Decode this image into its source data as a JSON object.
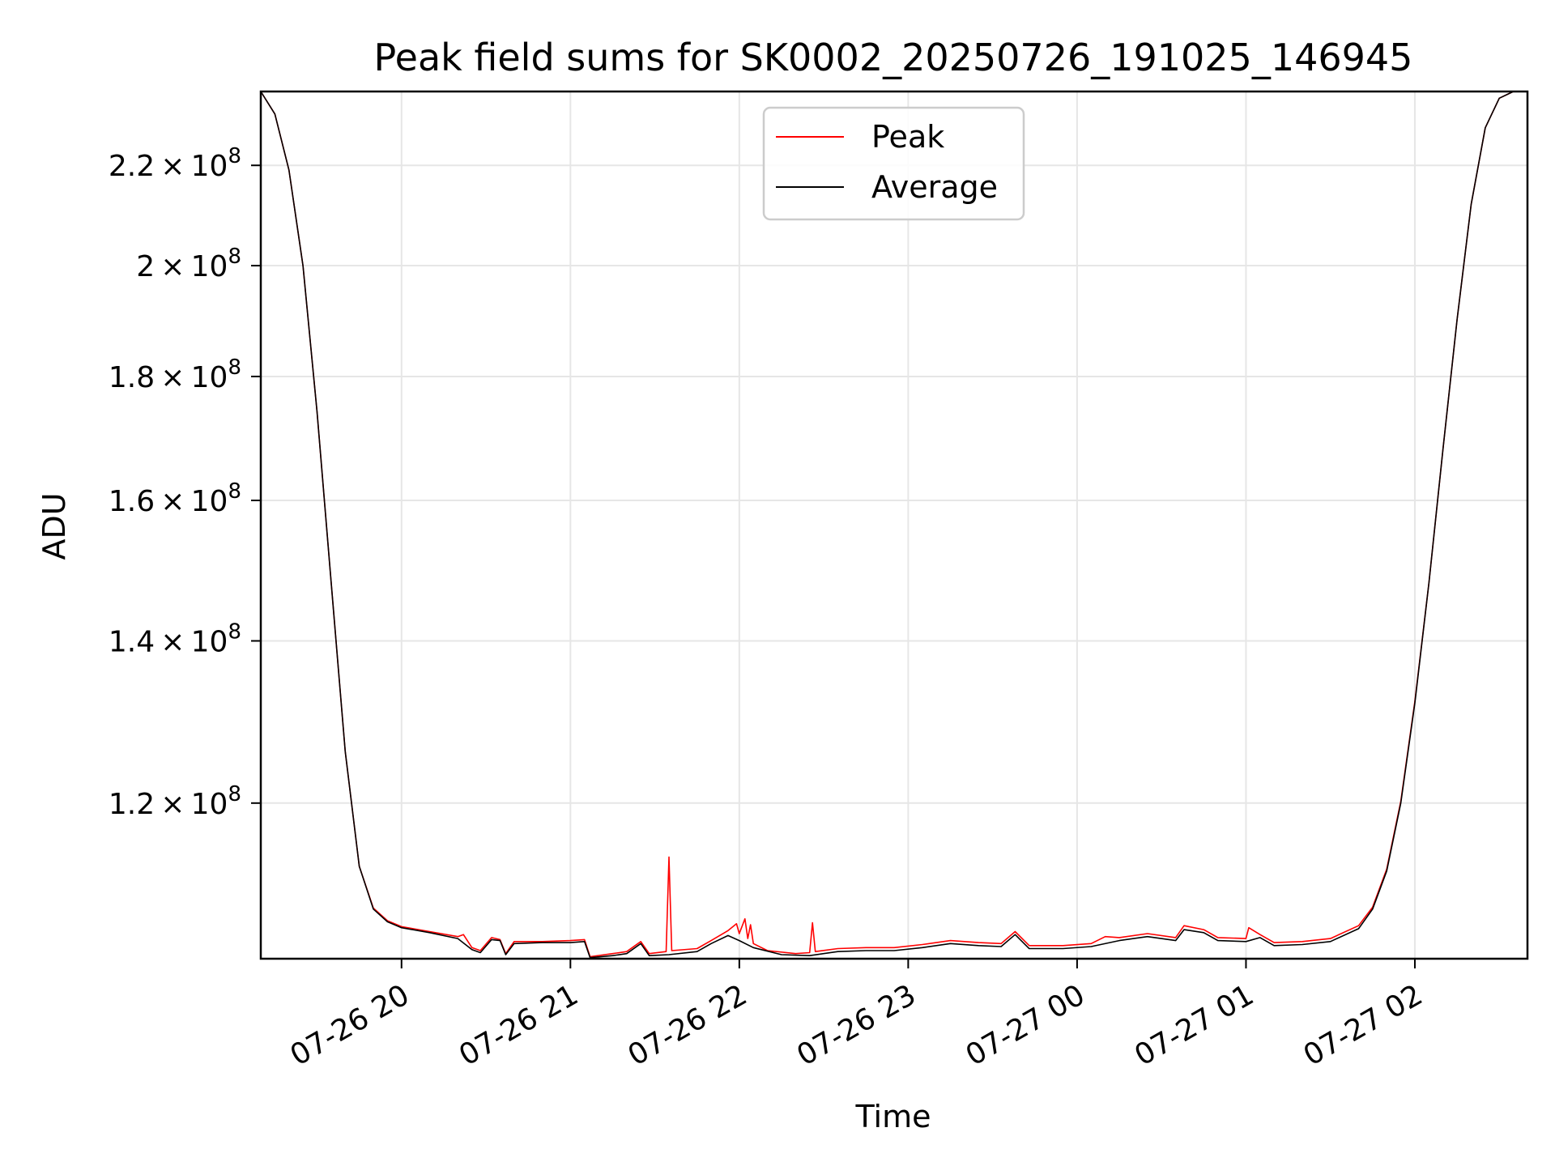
{
  "chart_data": {
    "type": "line",
    "title": "Peak field sums for SK0002_20250726_191025_146945",
    "xlabel": "Time",
    "ylabel": "ADU",
    "y_scale": "log",
    "grid": true,
    "legend_position": "upper-center",
    "x_range": [
      "2025-07-26T19:10",
      "2025-07-27T02:40"
    ],
    "y_range": [
      103500000,
      236000000
    ],
    "x_ticks": [
      {
        "value": "2025-07-26T20:00",
        "label": "07-26 20"
      },
      {
        "value": "2025-07-26T21:00",
        "label": "07-26 21"
      },
      {
        "value": "2025-07-26T22:00",
        "label": "07-26 22"
      },
      {
        "value": "2025-07-26T23:00",
        "label": "07-26 23"
      },
      {
        "value": "2025-07-27T00:00",
        "label": "07-27 00"
      },
      {
        "value": "2025-07-27T01:00",
        "label": "07-27 01"
      },
      {
        "value": "2025-07-27T02:00",
        "label": "07-27 02"
      }
    ],
    "y_ticks": [
      {
        "value": 120000000,
        "mantissa": "1.2",
        "exponent": "8"
      },
      {
        "value": 140000000,
        "mantissa": "1.4",
        "exponent": "8"
      },
      {
        "value": 160000000,
        "mantissa": "1.6",
        "exponent": "8"
      },
      {
        "value": 180000000,
        "mantissa": "1.8",
        "exponent": "8"
      },
      {
        "value": 200000000,
        "mantissa": "2",
        "exponent": "8"
      },
      {
        "value": 220000000,
        "mantissa": "2.2",
        "exponent": "8"
      }
    ],
    "series": [
      {
        "name": "Average",
        "color": "#000000",
        "points": [
          [
            "2025-07-26T19:10",
            236000000
          ],
          [
            "2025-07-26T19:15",
            231000000
          ],
          [
            "2025-07-26T19:20",
            219000000
          ],
          [
            "2025-07-26T19:25",
            200000000
          ],
          [
            "2025-07-26T19:30",
            174000000
          ],
          [
            "2025-07-26T19:35",
            148000000
          ],
          [
            "2025-07-26T19:40",
            126000000
          ],
          [
            "2025-07-26T19:45",
            113000000
          ],
          [
            "2025-07-26T19:50",
            108500000
          ],
          [
            "2025-07-26T19:55",
            107200000
          ],
          [
            "2025-07-26T20:00",
            106600000
          ],
          [
            "2025-07-26T20:10",
            106100000
          ],
          [
            "2025-07-26T20:20",
            105500000
          ],
          [
            "2025-07-26T20:25",
            104400000
          ],
          [
            "2025-07-26T20:28",
            104100000
          ],
          [
            "2025-07-26T20:32",
            105400000
          ],
          [
            "2025-07-26T20:35",
            105300000
          ],
          [
            "2025-07-26T20:37",
            103900000
          ],
          [
            "2025-07-26T20:40",
            105000000
          ],
          [
            "2025-07-26T20:50",
            105100000
          ],
          [
            "2025-07-26T21:00",
            105100000
          ],
          [
            "2025-07-26T21:05",
            105200000
          ],
          [
            "2025-07-26T21:07",
            103600000
          ],
          [
            "2025-07-26T21:15",
            103800000
          ],
          [
            "2025-07-26T21:20",
            104000000
          ],
          [
            "2025-07-26T21:25",
            105000000
          ],
          [
            "2025-07-26T21:28",
            103800000
          ],
          [
            "2025-07-26T21:35",
            103900000
          ],
          [
            "2025-07-26T21:45",
            104200000
          ],
          [
            "2025-07-26T21:50",
            105000000
          ],
          [
            "2025-07-26T21:56",
            105800000
          ],
          [
            "2025-07-26T22:00",
            105300000
          ],
          [
            "2025-07-26T22:05",
            104600000
          ],
          [
            "2025-07-26T22:15",
            103900000
          ],
          [
            "2025-07-26T22:25",
            103800000
          ],
          [
            "2025-07-26T22:35",
            104200000
          ],
          [
            "2025-07-26T22:45",
            104300000
          ],
          [
            "2025-07-26T22:55",
            104300000
          ],
          [
            "2025-07-26T23:05",
            104600000
          ],
          [
            "2025-07-26T23:15",
            105000000
          ],
          [
            "2025-07-26T23:25",
            104800000
          ],
          [
            "2025-07-26T23:33",
            104700000
          ],
          [
            "2025-07-26T23:38",
            105900000
          ],
          [
            "2025-07-26T23:43",
            104500000
          ],
          [
            "2025-07-26T23:55",
            104500000
          ],
          [
            "2025-07-27T00:05",
            104700000
          ],
          [
            "2025-07-27T00:15",
            105300000
          ],
          [
            "2025-07-27T00:25",
            105700000
          ],
          [
            "2025-07-27T00:35",
            105300000
          ],
          [
            "2025-07-27T00:38",
            106400000
          ],
          [
            "2025-07-27T00:45",
            106100000
          ],
          [
            "2025-07-27T00:50",
            105300000
          ],
          [
            "2025-07-27T01:00",
            105200000
          ],
          [
            "2025-07-27T01:05",
            105600000
          ],
          [
            "2025-07-27T01:10",
            104800000
          ],
          [
            "2025-07-27T01:20",
            104900000
          ],
          [
            "2025-07-27T01:30",
            105200000
          ],
          [
            "2025-07-27T01:40",
            106500000
          ],
          [
            "2025-07-27T01:45",
            108500000
          ],
          [
            "2025-07-27T01:50",
            112500000
          ],
          [
            "2025-07-27T01:55",
            120000000
          ],
          [
            "2025-07-27T02:00",
            132000000
          ],
          [
            "2025-07-27T02:05",
            148000000
          ],
          [
            "2025-07-27T02:10",
            168000000
          ],
          [
            "2025-07-27T02:15",
            190000000
          ],
          [
            "2025-07-27T02:20",
            212000000
          ],
          [
            "2025-07-27T02:25",
            228000000
          ],
          [
            "2025-07-27T02:30",
            234500000
          ],
          [
            "2025-07-27T02:35",
            236000000
          ],
          [
            "2025-07-27T02:40",
            236000000
          ]
        ]
      },
      {
        "name": "Peak",
        "color": "#ff0000",
        "points": [
          [
            "2025-07-26T19:10",
            236000000
          ],
          [
            "2025-07-26T19:15",
            231000000
          ],
          [
            "2025-07-26T19:20",
            219000000
          ],
          [
            "2025-07-26T19:25",
            200000000
          ],
          [
            "2025-07-26T19:30",
            174000000
          ],
          [
            "2025-07-26T19:35",
            148000000
          ],
          [
            "2025-07-26T19:40",
            126000000
          ],
          [
            "2025-07-26T19:45",
            113000000
          ],
          [
            "2025-07-26T19:50",
            108600000
          ],
          [
            "2025-07-26T19:55",
            107300000
          ],
          [
            "2025-07-26T20:00",
            106700000
          ],
          [
            "2025-07-26T20:10",
            106200000
          ],
          [
            "2025-07-26T20:20",
            105700000
          ],
          [
            "2025-07-26T20:22",
            105900000
          ],
          [
            "2025-07-26T20:25",
            104600000
          ],
          [
            "2025-07-26T20:28",
            104300000
          ],
          [
            "2025-07-26T20:32",
            105600000
          ],
          [
            "2025-07-26T20:35",
            105400000
          ],
          [
            "2025-07-26T20:37",
            104000000
          ],
          [
            "2025-07-26T20:40",
            105200000
          ],
          [
            "2025-07-26T20:50",
            105200000
          ],
          [
            "2025-07-26T21:00",
            105300000
          ],
          [
            "2025-07-26T21:05",
            105400000
          ],
          [
            "2025-07-26T21:07",
            103700000
          ],
          [
            "2025-07-26T21:15",
            104000000
          ],
          [
            "2025-07-26T21:20",
            104200000
          ],
          [
            "2025-07-26T21:25",
            105200000
          ],
          [
            "2025-07-26T21:28",
            104000000
          ],
          [
            "2025-07-26T21:34",
            104200000
          ],
          [
            "2025-07-26T21:35",
            114000000
          ],
          [
            "2025-07-26T21:36",
            104300000
          ],
          [
            "2025-07-26T21:45",
            104500000
          ],
          [
            "2025-07-26T21:50",
            105300000
          ],
          [
            "2025-07-26T21:56",
            106300000
          ],
          [
            "2025-07-26T21:59",
            107000000
          ],
          [
            "2025-07-26T22:00",
            106000000
          ],
          [
            "2025-07-26T22:02",
            107500000
          ],
          [
            "2025-07-26T22:03",
            105500000
          ],
          [
            "2025-07-26T22:04",
            106900000
          ],
          [
            "2025-07-26T22:05",
            105000000
          ],
          [
            "2025-07-26T22:10",
            104300000
          ],
          [
            "2025-07-26T22:20",
            104000000
          ],
          [
            "2025-07-26T22:25",
            104100000
          ],
          [
            "2025-07-26T22:26",
            107100000
          ],
          [
            "2025-07-26T22:27",
            104200000
          ],
          [
            "2025-07-26T22:35",
            104500000
          ],
          [
            "2025-07-26T22:45",
            104600000
          ],
          [
            "2025-07-26T22:55",
            104600000
          ],
          [
            "2025-07-26T23:05",
            104900000
          ],
          [
            "2025-07-26T23:15",
            105300000
          ],
          [
            "2025-07-26T23:25",
            105100000
          ],
          [
            "2025-07-26T23:33",
            105000000
          ],
          [
            "2025-07-26T23:38",
            106200000
          ],
          [
            "2025-07-26T23:43",
            104800000
          ],
          [
            "2025-07-26T23:55",
            104800000
          ],
          [
            "2025-07-27T00:05",
            105000000
          ],
          [
            "2025-07-27T00:10",
            105700000
          ],
          [
            "2025-07-27T00:15",
            105600000
          ],
          [
            "2025-07-27T00:25",
            106000000
          ],
          [
            "2025-07-27T00:35",
            105600000
          ],
          [
            "2025-07-27T00:38",
            106800000
          ],
          [
            "2025-07-27T00:45",
            106400000
          ],
          [
            "2025-07-27T00:50",
            105600000
          ],
          [
            "2025-07-27T01:00",
            105500000
          ],
          [
            "2025-07-27T01:01",
            106600000
          ],
          [
            "2025-07-27T01:05",
            105900000
          ],
          [
            "2025-07-27T01:10",
            105100000
          ],
          [
            "2025-07-27T01:20",
            105200000
          ],
          [
            "2025-07-27T01:30",
            105500000
          ],
          [
            "2025-07-27T01:40",
            106800000
          ],
          [
            "2025-07-27T01:45",
            108700000
          ],
          [
            "2025-07-27T01:50",
            112700000
          ],
          [
            "2025-07-27T01:55",
            120200000
          ],
          [
            "2025-07-27T02:00",
            132200000
          ],
          [
            "2025-07-27T02:05",
            148000000
          ],
          [
            "2025-07-27T02:10",
            168000000
          ],
          [
            "2025-07-27T02:15",
            190000000
          ],
          [
            "2025-07-27T02:20",
            212000000
          ],
          [
            "2025-07-27T02:25",
            228000000
          ],
          [
            "2025-07-27T02:30",
            234500000
          ],
          [
            "2025-07-27T02:35",
            236000000
          ],
          [
            "2025-07-27T02:40",
            236000000
          ]
        ]
      }
    ]
  },
  "legend": {
    "entries": [
      {
        "label": "Peak",
        "color": "#ff0000"
      },
      {
        "label": "Average",
        "color": "#000000"
      }
    ]
  }
}
